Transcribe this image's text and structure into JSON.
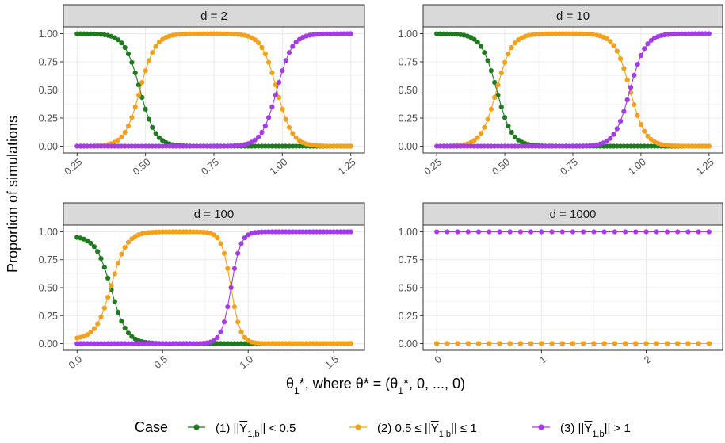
{
  "chart_data": {
    "type": "line",
    "ylabel": "Proportion of simulations",
    "xlabel": "θ₁*, where  θ* = (θ₁*, 0, ..., 0)",
    "legend": {
      "title": "Case",
      "position": "bottom",
      "entries": [
        "(1)  ||Ȳ1,b|| < 0.5",
        "(2)  0.5 ≤ ||Ȳ1,b|| ≤ 1",
        "(3)  ||Ȳ1,b|| > 1"
      ]
    },
    "colors": {
      "case1": "#1f7a1f",
      "case2": "#f5a01a",
      "case3": "#a53be6",
      "strip_bg": "#d9d9d9",
      "grid": "#ebebeb"
    },
    "grid": true,
    "y_ticks": [
      "0.00",
      "0.25",
      "0.50",
      "0.75",
      "1.00"
    ],
    "ylim": [
      -0.06,
      1.06
    ],
    "panels": [
      {
        "title": "d = 2",
        "xlim": [
          0.2,
          1.3
        ],
        "x_ticks": [
          "0.25",
          "0.50",
          "0.75",
          "1.00",
          "1.25"
        ],
        "x_tick_values": [
          0.25,
          0.5,
          0.75,
          1.0,
          1.25
        ],
        "x_range": [
          0.25,
          1.25
        ],
        "n_points": 81,
        "series": [
          {
            "name": "(1)",
            "shape": "decreasing",
            "t1": 0.48,
            "s1": 0.028,
            "values": "1.00 for x ≤ 0.40, 0.50 at x ≈ 0.48, 0.00 for x ≥ 0.58"
          },
          {
            "name": "(2)",
            "shape": "bump",
            "t1": 0.48,
            "s1": 0.028,
            "t2": 0.98,
            "s2": 0.028,
            "values": "0.00 for x ≤ 0.38, 1.00 for 0.60–0.88, 0.50 at x ≈ 0.98, 0.00 for x ≥ 1.08"
          },
          {
            "name": "(3)",
            "shape": "increasing",
            "t2": 0.98,
            "s2": 0.028,
            "values": "0.00 for x ≤ 0.90, 0.50 at x ≈ 0.98, 1.00 for x ≥ 1.08"
          }
        ]
      },
      {
        "title": "d = 10",
        "xlim": [
          0.2,
          1.3
        ],
        "x_ticks": [
          "0.25",
          "0.50",
          "0.75",
          "1.00",
          "1.25"
        ],
        "x_tick_values": [
          0.25,
          0.5,
          0.75,
          1.0,
          1.25
        ],
        "x_range": [
          0.25,
          1.25
        ],
        "n_points": 81,
        "series": [
          {
            "name": "(1)",
            "shape": "decreasing",
            "t1": 0.47,
            "s1": 0.028,
            "values": "1.00 for x ≤ 0.39, 0.50 at x ≈ 0.47, 0.00 for x ≥ 0.57"
          },
          {
            "name": "(2)",
            "shape": "bump",
            "t1": 0.47,
            "s1": 0.028,
            "t2": 0.96,
            "s2": 0.028,
            "values": "0.00 for x ≤ 0.37, 1.00 for 0.58–0.86, 0.50 at x ≈ 0.96, 0.00 for x ≥ 1.06"
          },
          {
            "name": "(3)",
            "shape": "increasing",
            "t2": 0.96,
            "s2": 0.028,
            "values": "0.00 for x ≤ 0.88, 0.50 at x ≈ 0.96, 1.00 for x ≥ 1.06"
          }
        ]
      },
      {
        "title": "d = 100",
        "xlim": [
          -0.08,
          1.68
        ],
        "x_ticks": [
          "0.0",
          "0.5",
          "1.0",
          "1.5"
        ],
        "x_tick_values": [
          0.0,
          0.5,
          1.0,
          1.5
        ],
        "x_range": [
          0.0,
          1.6
        ],
        "n_points": 81,
        "series": [
          {
            "name": "(1)",
            "shape": "decreasing",
            "t1": 0.2,
            "s1": 0.045,
            "start": 0.95,
            "values": "0.95 at x = 0, 0.50 at x ≈ 0.20, 0.00 for x ≥ 0.40"
          },
          {
            "name": "(2)",
            "shape": "bump",
            "t1": 0.2,
            "s1": 0.045,
            "t2": 0.9,
            "s2": 0.028,
            "start": 0.05,
            "values": "0.05 at x = 0, 1.00 for 0.35–0.80, 0.50 at x ≈ 0.90, 0.00 for x ≥ 1.00"
          },
          {
            "name": "(3)",
            "shape": "increasing",
            "t2": 0.9,
            "s2": 0.028,
            "values": "0.00 for x ≤ 0.80, 0.50 at x ≈ 0.90, 1.00 for x ≥ 1.00"
          }
        ]
      },
      {
        "title": "d = 1000",
        "xlim": [
          -0.13,
          2.73
        ],
        "x_ticks": [
          "0",
          "1",
          "2"
        ],
        "x_tick_values": [
          0,
          1,
          2
        ],
        "x_range": [
          0.0,
          2.6
        ],
        "n_points": 27,
        "series": [
          {
            "name": "(1)",
            "shape": "constant",
            "value": 0.0,
            "values": "0.00 throughout"
          },
          {
            "name": "(2)",
            "shape": "constant",
            "value": 0.0,
            "values": "0.00 throughout"
          },
          {
            "name": "(3)",
            "shape": "constant",
            "value": 1.0,
            "values": "1.00 throughout"
          }
        ]
      }
    ]
  }
}
